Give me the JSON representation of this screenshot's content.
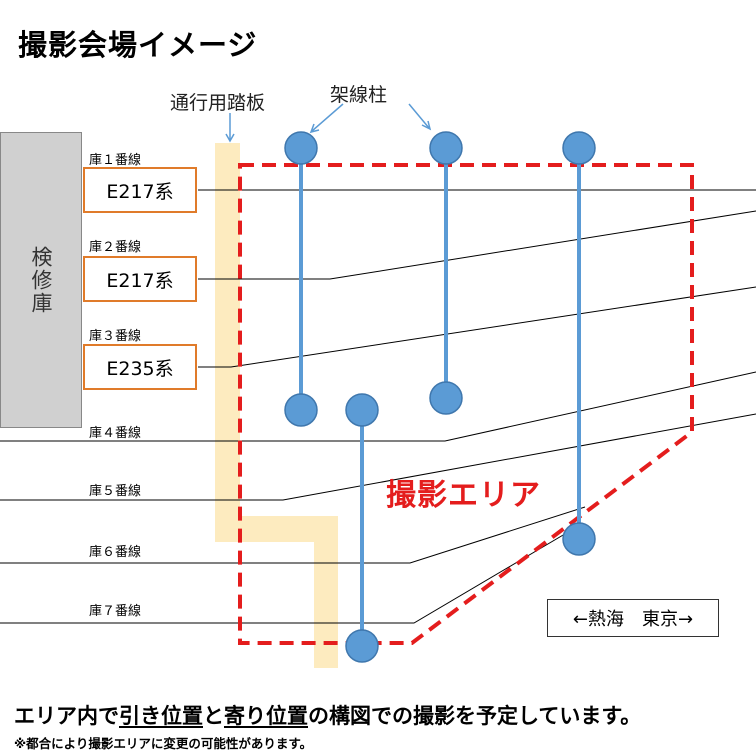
{
  "title": "撮影会場イメージ",
  "labels": {
    "walkway": "通行用踏板",
    "poles": "架線柱",
    "shed": "検修庫",
    "area": "撮影エリア",
    "direction": "←熱海　東京→"
  },
  "tracks": [
    {
      "label": "庫１番線",
      "train": "E217系"
    },
    {
      "label": "庫２番線",
      "train": "E217系"
    },
    {
      "label": "庫３番線",
      "train": "E235系"
    },
    {
      "label": "庫４番線"
    },
    {
      "label": "庫５番線"
    },
    {
      "label": "庫６番線"
    },
    {
      "label": "庫７番線"
    }
  ],
  "footer": {
    "part1": "エリア内で",
    "pull": "引き位置",
    "and": "と",
    "near": "寄り位置",
    "part2": "の構図での撮影を予定しています。"
  },
  "note": "※都合により撮影エリアに変更の可能性があります。",
  "colors": {
    "area_border": "#e41d1d",
    "train_border": "#e07b2a",
    "pole": "#5b9bd5",
    "walkway": "#fdebbf",
    "shed": "#d0d0d0"
  }
}
